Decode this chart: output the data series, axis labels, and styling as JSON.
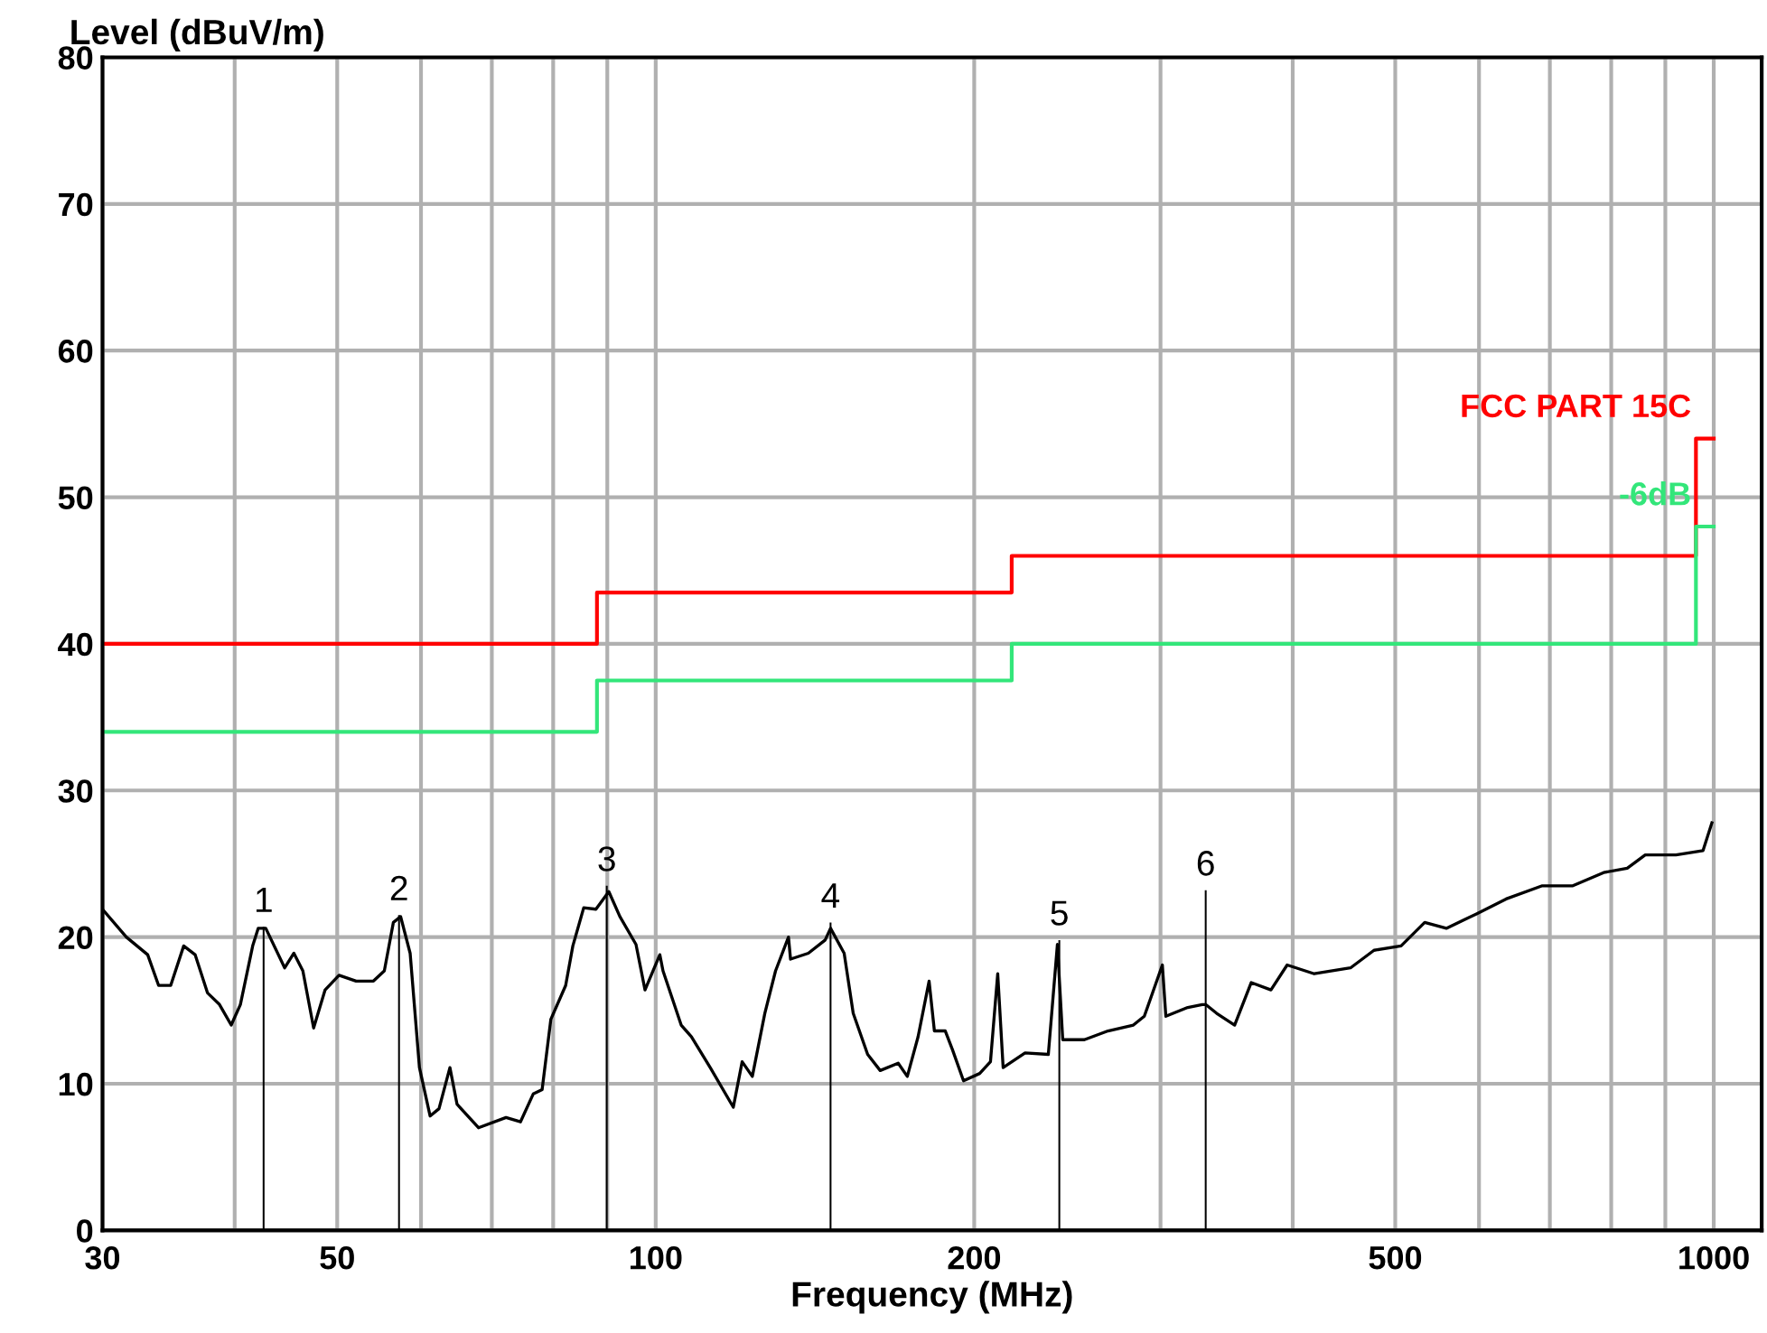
{
  "chart_data": {
    "type": "line",
    "xlabel": "Frequency (MHz)",
    "ylabel": "Level (dBuV/m)",
    "log": "x",
    "xlim": [
      30,
      1110
    ],
    "ylim": [
      0,
      80
    ],
    "xticks": [
      30,
      {
        "value": 40,
        "label": null
      },
      50,
      {
        "value": 60,
        "label": null
      },
      {
        "value": 70,
        "label": null
      },
      {
        "value": 80,
        "label": null
      },
      {
        "value": 90,
        "label": null
      },
      100,
      200,
      {
        "value": 300,
        "label": null
      },
      {
        "value": 400,
        "label": null
      },
      500,
      {
        "value": 600,
        "label": null
      },
      {
        "value": 700,
        "label": null
      },
      {
        "value": 800,
        "label": null
      },
      {
        "value": 900,
        "label": null
      },
      1000
    ],
    "yticks": [
      0,
      10,
      20,
      30,
      40,
      50,
      60,
      70,
      80
    ],
    "grid": true,
    "legend": false,
    "marker": "none",
    "line_style": "solid",
    "series": [
      {
        "type": "step",
        "name": "FCC PART 15C",
        "color": "#ff0000",
        "x": [
          30,
          88,
          217,
          962,
          1000
        ],
        "values": [
          40,
          43.5,
          46,
          54,
          54
        ]
      },
      {
        "type": "step",
        "name": "-6dB",
        "color": "#33e67a",
        "x": [
          30,
          88,
          217,
          962,
          1000
        ],
        "values": [
          34,
          37.5,
          40,
          48,
          48
        ]
      },
      {
        "color": "#000000",
        "x": [
          30,
          31.6,
          33.1,
          33.9,
          34.8,
          35.8,
          36.7,
          37.7,
          38.7,
          39.7,
          40.5,
          41.6,
          42.1,
          42.8,
          44.6,
          45.5,
          46.4,
          47.5,
          48.7,
          50.2,
          52.1,
          54.1,
          55.4,
          56.5,
          57.4,
          58.6,
          59.8,
          61.2,
          62.4,
          63.9,
          64.9,
          68.0,
          72.2,
          74.5,
          76.6,
          78.1,
          79.6,
          82.2,
          83.5,
          85.5,
          87.8,
          90.3,
          92.5,
          95.8,
          97.7,
          100.9,
          101.6,
          105.7,
          108.1,
          112.6,
          118.4,
          120.7,
          123.4,
          126.8,
          129.8,
          133.5,
          134.1,
          139.4,
          144.6,
          146.3,
          150.7,
          153.7,
          158.6,
          163,
          169.5,
          172.9,
          177,
          181.3,
          183.4,
          187.8,
          190.8,
          195.4,
          202.4,
          207.2,
          210.5,
          213,
          223.4,
          235,
          239.7,
          242.5,
          254.2,
          267.6,
          282.8,
          289.6,
          301.2,
          303.5,
          318.3,
          328.5,
          331,
          339,
          352.5,
          365.5,
          381.5,
          395.2,
          419.2,
          453.6,
          477.4,
          506.4,
          533.1,
          558.8,
          597.3,
          636.4,
          688.6,
          735.9,
          786.9,
          828.4,
          861.5,
          921.1,
          977,
          996
        ],
        "values": [
          21.9,
          20.0,
          18.8,
          16.7,
          16.7,
          19.4,
          18.8,
          16.2,
          15.4,
          14.0,
          15.4,
          19.4,
          20.6,
          20.6,
          17.9,
          18.9,
          17.7,
          13.8,
          16.4,
          17.4,
          17.0,
          17.0,
          17.7,
          21.0,
          21.4,
          18.9,
          11.1,
          7.8,
          8.3,
          11.1,
          8.6,
          7.0,
          7.7,
          7.4,
          9.3,
          9.6,
          14.4,
          16.7,
          19.4,
          22.0,
          21.9,
          23.1,
          21.4,
          19.5,
          16.4,
          18.8,
          17.7,
          14.0,
          13.2,
          11.1,
          8.4,
          11.5,
          10.5,
          14.8,
          17.7,
          20.0,
          18.5,
          18.9,
          19.8,
          20.6,
          18.9,
          14.8,
          12.0,
          10.9,
          11.4,
          10.5,
          13.2,
          17.0,
          13.6,
          13.6,
          12.3,
          10.2,
          10.7,
          11.5,
          17.5,
          11.1,
          12.1,
          12.0,
          19.5,
          13.0,
          13.0,
          13.6,
          14.0,
          14.6,
          18.1,
          14.6,
          15.2,
          15.4,
          15.4,
          14.8,
          14.0,
          16.9,
          16.4,
          18.1,
          17.5,
          17.9,
          19.1,
          19.4,
          21.0,
          20.6,
          21.6,
          22.6,
          23.5,
          23.5,
          24.4,
          24.7,
          25.6,
          25.6,
          25.9,
          27.8
        ]
      },
      {
        "type": "bar",
        "color": "#000000",
        "x": [
          42.6,
          57.2,
          89.9,
          146.3,
          240.7,
          331
        ],
        "values": [
          20.7,
          21.5,
          23.5,
          21.0,
          19.8,
          23.2
        ]
      }
    ],
    "annotations": [
      {
        "text": "1",
        "x": 42.6,
        "y": 20.7
      },
      {
        "text": "2",
        "x": 57.2,
        "y": 21.5
      },
      {
        "text": "3",
        "x": 89.9,
        "y": 23.5
      },
      {
        "text": "4",
        "x": 146.3,
        "y": 21.0
      },
      {
        "text": "5",
        "x": 240.7,
        "y": 19.8
      },
      {
        "text": "6",
        "x": 331,
        "y": 23.2
      }
    ]
  }
}
